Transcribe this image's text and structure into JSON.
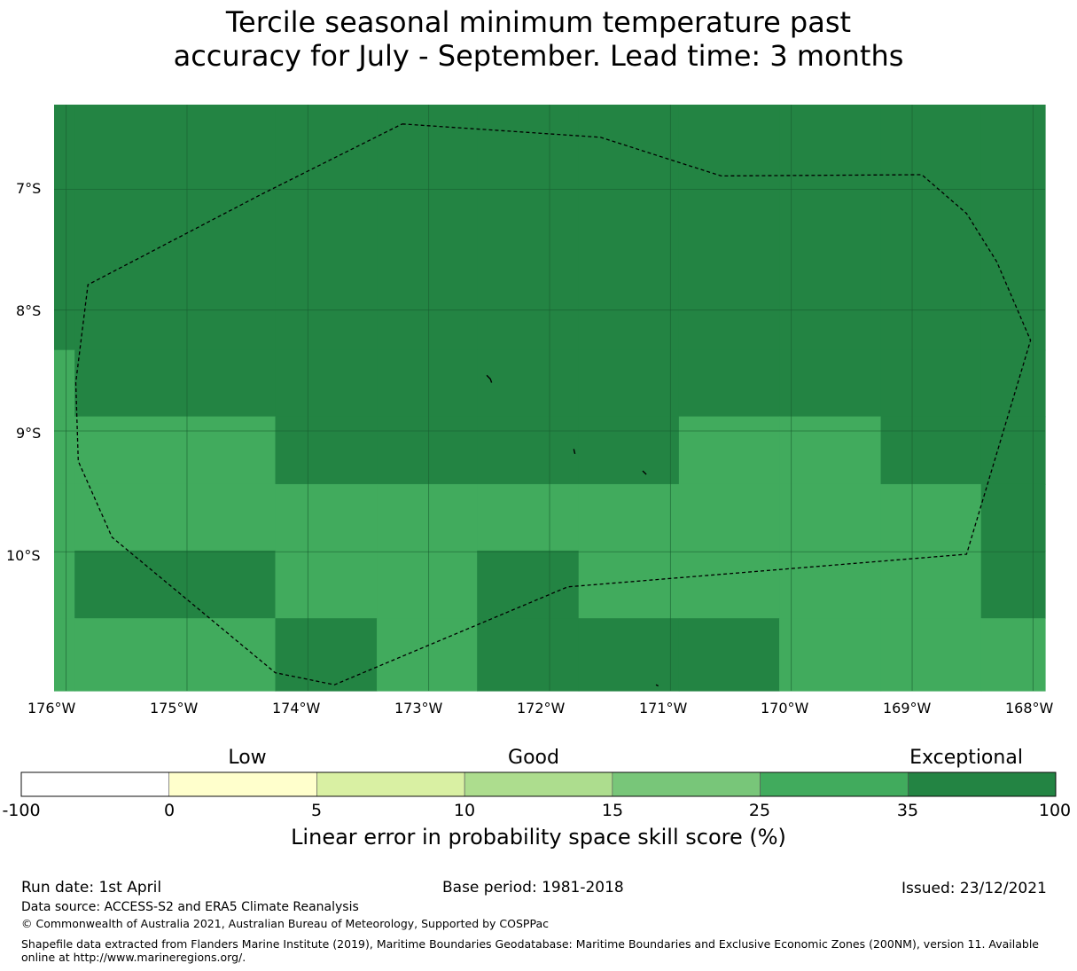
{
  "title": {
    "line1": "Tercile seasonal minimum temperature past",
    "line2": "accuracy for July - September. Lead time: 3 months"
  },
  "map": {
    "lat_labels": [
      "7°S",
      "8°S",
      "9°S",
      "10°S"
    ],
    "lon_labels": [
      "176°W",
      "175°W",
      "174°W",
      "173°W",
      "172°W",
      "171°W",
      "170°W",
      "169°W",
      "168°W"
    ],
    "lon_range": [
      -176.1,
      -167.9
    ],
    "lat_range": [
      -11.15,
      -6.3
    ],
    "colors": {
      "dark": "#238443",
      "medium": "#41ab5d",
      "gridline": "#1a5e30",
      "boundary": "#000000"
    },
    "grid_columns_lon": [
      -176.1,
      -175.93,
      -174.27,
      -173.43,
      -172.6,
      -171.76,
      -170.93,
      -170.1,
      -169.26,
      -168.43,
      -167.9
    ],
    "grid_rows_lat": [
      -6.3,
      -8.33,
      -8.88,
      -9.44,
      -9.99,
      -10.55,
      -11.15
    ],
    "skill_cells": [
      [
        "dark",
        "dark",
        "dark",
        "dark",
        "dark",
        "dark",
        "dark",
        "dark",
        "dark",
        "dark"
      ],
      [
        "medium",
        "dark",
        "dark",
        "dark",
        "dark",
        "dark",
        "dark",
        "dark",
        "dark",
        "dark"
      ],
      [
        "medium",
        "medium",
        "dark",
        "dark",
        "dark",
        "dark",
        "medium",
        "medium",
        "dark",
        "dark"
      ],
      [
        "medium",
        "medium",
        "medium",
        "medium",
        "medium",
        "medium",
        "medium",
        "medium",
        "medium",
        "dark"
      ],
      [
        "medium",
        "dark",
        "medium",
        "medium",
        "dark",
        "medium",
        "medium",
        "medium",
        "medium",
        "dark"
      ],
      [
        "medium",
        "medium",
        "dark",
        "medium",
        "dark",
        "dark",
        "dark",
        "medium",
        "medium",
        "medium"
      ]
    ],
    "eez_boundary": [
      [
        -173.22,
        -6.46
      ],
      [
        -171.58,
        -6.57
      ],
      [
        -170.58,
        -6.89
      ],
      [
        -168.92,
        -6.88
      ],
      [
        -168.55,
        -7.2
      ],
      [
        -168.3,
        -7.6
      ],
      [
        -168.02,
        -8.25
      ],
      [
        -168.55,
        -10.02
      ],
      [
        -171.85,
        -10.29
      ],
      [
        -173.78,
        -11.1
      ],
      [
        -174.27,
        -11.0
      ],
      [
        -175.62,
        -9.88
      ],
      [
        -175.9,
        -9.25
      ],
      [
        -175.92,
        -8.6
      ],
      [
        -175.82,
        -7.79
      ],
      [
        -174.4,
        -7.05
      ],
      [
        -173.22,
        -6.46
      ]
    ],
    "islands": [
      [
        [
          -172.52,
          -8.54
        ],
        [
          -172.49,
          -8.57
        ],
        [
          -172.48,
          -8.6
        ]
      ],
      [
        [
          -171.8,
          -9.15
        ],
        [
          -171.79,
          -9.19
        ]
      ],
      [
        [
          -171.23,
          -9.33
        ],
        [
          -171.2,
          -9.36
        ]
      ],
      [
        [
          -171.12,
          -11.1
        ],
        [
          -171.1,
          -11.11
        ]
      ]
    ]
  },
  "colorbar": {
    "categories": [
      "Low",
      "Good",
      "Exceptional"
    ],
    "colors": [
      "#ffffff",
      "#ffffcc",
      "#d9f0a3",
      "#addd8e",
      "#78c679",
      "#41ab5d",
      "#238443"
    ],
    "ticks": [
      "-100",
      "0",
      "5",
      "10",
      "15",
      "25",
      "35",
      "100"
    ],
    "title": "Linear error in probability space skill score (%)"
  },
  "footer": {
    "run_date": "Run date: 1st April",
    "base_period": "Base period: 1981-2018",
    "issued": "Issued: 23/12/2021",
    "data_source": "Data source: ACCESS-S2 and ERA5 Climate Reanalysis",
    "copyright": "© Commonwealth of Australia 2021, Australian Bureau of Meteorology, Supported by COSPPac",
    "shapefile": "Shapefile data extracted from Flanders Marine Institute (2019), Maritime Boundaries Geodatabase: Maritime Boundaries and Exclusive Economic Zones (200NM), version 11. Available online at http://www.marineregions.org/."
  }
}
